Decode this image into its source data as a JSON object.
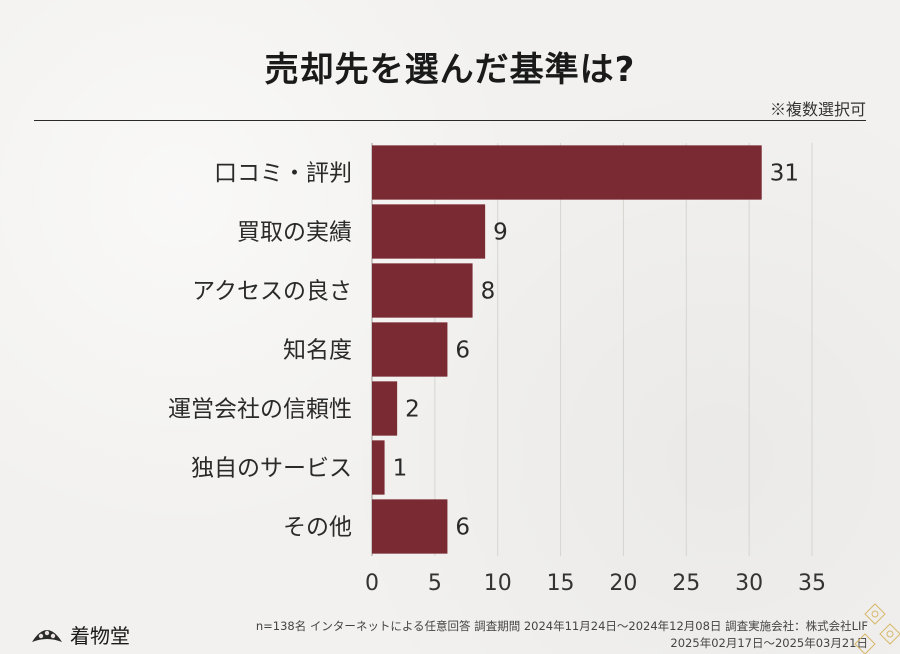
{
  "title": "売却先を選んだ基準は?",
  "note": "※複数選択可",
  "colors": {
    "bar": "#7a2a32",
    "grid": "#d6d4d0",
    "background": "#f2f1ef"
  },
  "chart_data": {
    "type": "bar",
    "orientation": "horizontal",
    "categories": [
      "口コミ・評判",
      "買取の実績",
      "アクセスの良さ",
      "知名度",
      "運営会社の信頼性",
      "独自のサービス",
      "その他"
    ],
    "values": [
      31,
      9,
      8,
      6,
      2,
      1,
      6
    ],
    "xlim": [
      0,
      35
    ],
    "xticks": [
      0,
      5,
      10,
      15,
      20,
      25,
      30,
      35
    ],
    "grid": true,
    "data_labels": true
  },
  "footer": {
    "brand": "着物堂",
    "line1": "n=138名 インターネットによる任意回答 調査期間 2024年11月24日〜2024年12月08日 調査実施会社：株式会社LIF",
    "line2": "2025年02月17日〜2025年03月21日"
  }
}
